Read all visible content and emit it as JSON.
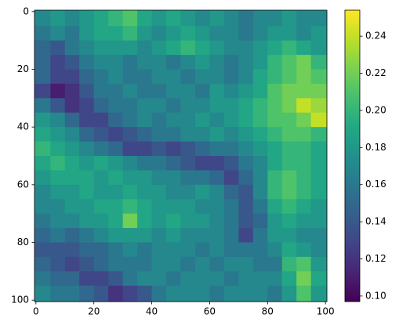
{
  "chart_data": {
    "type": "heatmap",
    "colormap": "viridis",
    "x": [
      2.5,
      7.5,
      12.5,
      17.5,
      22.5,
      27.5,
      32.5,
      37.5,
      42.5,
      47.5,
      52.5,
      57.5,
      62.5,
      67.5,
      72.5,
      77.5,
      82.5,
      87.5,
      92.5,
      97.5
    ],
    "y": [
      2.5,
      7.5,
      12.5,
      17.5,
      22.5,
      27.5,
      32.5,
      37.5,
      42.5,
      47.5,
      52.5,
      57.5,
      62.5,
      67.5,
      72.5,
      77.5,
      82.5,
      87.5,
      92.5,
      97.5
    ],
    "z": [
      [
        0.17,
        0.18,
        0.17,
        0.18,
        0.19,
        0.2,
        0.21,
        0.19,
        0.18,
        0.19,
        0.18,
        0.17,
        0.18,
        0.17,
        0.16,
        0.17,
        0.17,
        0.18,
        0.17,
        0.17
      ],
      [
        0.16,
        0.17,
        0.16,
        0.18,
        0.19,
        0.19,
        0.2,
        0.18,
        0.17,
        0.18,
        0.19,
        0.18,
        0.17,
        0.17,
        0.16,
        0.17,
        0.18,
        0.18,
        0.17,
        0.18
      ],
      [
        0.15,
        0.14,
        0.16,
        0.17,
        0.18,
        0.18,
        0.18,
        0.17,
        0.18,
        0.19,
        0.2,
        0.19,
        0.18,
        0.17,
        0.17,
        0.18,
        0.19,
        0.2,
        0.19,
        0.18
      ],
      [
        0.15,
        0.13,
        0.14,
        0.16,
        0.17,
        0.17,
        0.16,
        0.17,
        0.17,
        0.16,
        0.17,
        0.18,
        0.17,
        0.16,
        0.17,
        0.18,
        0.2,
        0.21,
        0.22,
        0.2
      ],
      [
        0.15,
        0.13,
        0.13,
        0.15,
        0.16,
        0.17,
        0.16,
        0.16,
        0.17,
        0.17,
        0.16,
        0.17,
        0.17,
        0.16,
        0.17,
        0.19,
        0.2,
        0.21,
        0.22,
        0.21
      ],
      [
        0.13,
        0.11,
        0.12,
        0.14,
        0.16,
        0.16,
        0.17,
        0.16,
        0.16,
        0.17,
        0.17,
        0.16,
        0.18,
        0.17,
        0.18,
        0.19,
        0.21,
        0.22,
        0.22,
        0.22
      ],
      [
        0.16,
        0.14,
        0.12,
        0.13,
        0.15,
        0.16,
        0.16,
        0.17,
        0.17,
        0.16,
        0.17,
        0.17,
        0.18,
        0.18,
        0.19,
        0.2,
        0.21,
        0.22,
        0.24,
        0.23
      ],
      [
        0.18,
        0.17,
        0.15,
        0.13,
        0.13,
        0.15,
        0.16,
        0.17,
        0.16,
        0.17,
        0.17,
        0.18,
        0.17,
        0.18,
        0.19,
        0.2,
        0.21,
        0.21,
        0.22,
        0.24
      ],
      [
        0.19,
        0.18,
        0.17,
        0.15,
        0.14,
        0.13,
        0.14,
        0.15,
        0.16,
        0.16,
        0.17,
        0.17,
        0.18,
        0.17,
        0.18,
        0.19,
        0.2,
        0.21,
        0.21,
        0.2
      ],
      [
        0.2,
        0.19,
        0.18,
        0.17,
        0.16,
        0.15,
        0.13,
        0.13,
        0.14,
        0.13,
        0.14,
        0.15,
        0.16,
        0.16,
        0.17,
        0.18,
        0.19,
        0.2,
        0.2,
        0.19
      ],
      [
        0.19,
        0.2,
        0.19,
        0.18,
        0.19,
        0.18,
        0.17,
        0.16,
        0.16,
        0.15,
        0.14,
        0.13,
        0.13,
        0.14,
        0.16,
        0.17,
        0.19,
        0.2,
        0.2,
        0.19
      ],
      [
        0.18,
        0.19,
        0.19,
        0.19,
        0.18,
        0.19,
        0.18,
        0.18,
        0.17,
        0.17,
        0.16,
        0.16,
        0.15,
        0.13,
        0.15,
        0.17,
        0.2,
        0.21,
        0.2,
        0.19
      ],
      [
        0.17,
        0.18,
        0.18,
        0.19,
        0.18,
        0.18,
        0.19,
        0.18,
        0.18,
        0.17,
        0.17,
        0.18,
        0.17,
        0.15,
        0.14,
        0.17,
        0.2,
        0.21,
        0.2,
        0.19
      ],
      [
        0.17,
        0.17,
        0.18,
        0.18,
        0.19,
        0.19,
        0.2,
        0.19,
        0.18,
        0.18,
        0.18,
        0.17,
        0.17,
        0.16,
        0.14,
        0.16,
        0.19,
        0.2,
        0.19,
        0.18
      ],
      [
        0.16,
        0.17,
        0.17,
        0.18,
        0.18,
        0.19,
        0.22,
        0.19,
        0.18,
        0.19,
        0.18,
        0.18,
        0.17,
        0.16,
        0.14,
        0.15,
        0.18,
        0.19,
        0.18,
        0.18
      ],
      [
        0.15,
        0.16,
        0.15,
        0.16,
        0.17,
        0.18,
        0.18,
        0.18,
        0.17,
        0.18,
        0.17,
        0.17,
        0.17,
        0.16,
        0.13,
        0.16,
        0.18,
        0.18,
        0.17,
        0.17
      ],
      [
        0.14,
        0.14,
        0.14,
        0.15,
        0.15,
        0.16,
        0.17,
        0.16,
        0.17,
        0.17,
        0.17,
        0.16,
        0.17,
        0.16,
        0.16,
        0.16,
        0.17,
        0.19,
        0.18,
        0.17
      ],
      [
        0.15,
        0.14,
        0.13,
        0.14,
        0.15,
        0.16,
        0.16,
        0.16,
        0.17,
        0.17,
        0.16,
        0.17,
        0.16,
        0.17,
        0.17,
        0.16,
        0.16,
        0.2,
        0.21,
        0.18
      ],
      [
        0.16,
        0.15,
        0.15,
        0.13,
        0.13,
        0.14,
        0.16,
        0.17,
        0.17,
        0.16,
        0.17,
        0.17,
        0.17,
        0.16,
        0.17,
        0.17,
        0.17,
        0.19,
        0.22,
        0.19
      ],
      [
        0.17,
        0.16,
        0.16,
        0.15,
        0.14,
        0.12,
        0.13,
        0.14,
        0.16,
        0.17,
        0.17,
        0.17,
        0.16,
        0.17,
        0.17,
        0.17,
        0.16,
        0.18,
        0.21,
        0.18
      ]
    ],
    "xlim": [
      -0.5,
      100.5
    ],
    "ylim": [
      100.5,
      -0.5
    ],
    "xticks": [
      0,
      20,
      40,
      60,
      80,
      100
    ],
    "yticks": [
      0,
      20,
      40,
      60,
      80,
      100
    ],
    "clim": [
      0.097,
      0.254
    ],
    "cticks": [
      {
        "value": 0.1,
        "label": "0.10"
      },
      {
        "value": 0.12,
        "label": "0.12"
      },
      {
        "value": 0.14,
        "label": "0.14"
      },
      {
        "value": 0.16,
        "label": "0.16"
      },
      {
        "value": 0.18,
        "label": "0.18"
      },
      {
        "value": 0.2,
        "label": "0.20"
      },
      {
        "value": 0.22,
        "label": "0.22"
      },
      {
        "value": 0.24,
        "label": "0.24"
      }
    ]
  }
}
